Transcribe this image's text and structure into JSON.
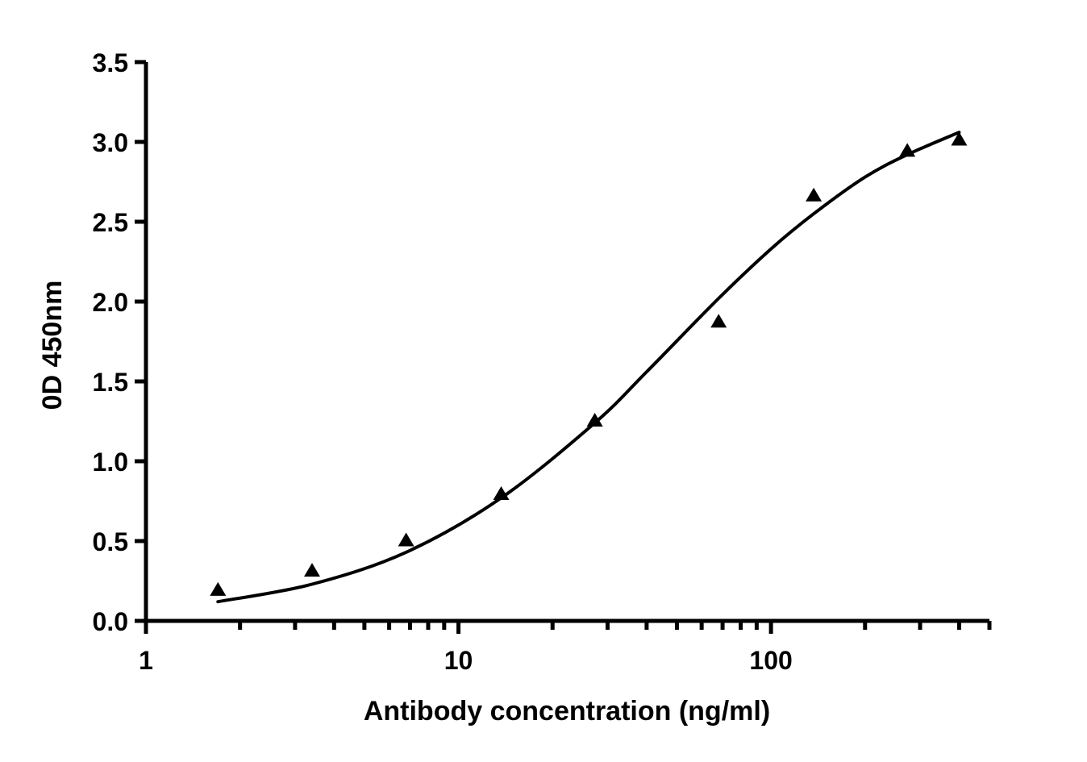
{
  "chart_data": {
    "type": "scatter",
    "title": "",
    "xlabel": "Antibody concentration (ng/ml)",
    "ylabel": "0D 450nm",
    "xscale": "log",
    "xlim": [
      1,
      500
    ],
    "ylim": [
      0,
      3.5
    ],
    "grid": false,
    "x_tick_labels": [
      "1",
      "10",
      "100"
    ],
    "y_tick_labels": [
      "0.0",
      "0.5",
      "1.0",
      "1.5",
      "2.0",
      "2.5",
      "3.0",
      "3.5"
    ],
    "series": [
      {
        "marker": "triangle",
        "points": [
          {
            "x": 1.7,
            "y": 0.19
          },
          {
            "x": 3.4,
            "y": 0.31
          },
          {
            "x": 6.8,
            "y": 0.5
          },
          {
            "x": 13.7,
            "y": 0.79
          },
          {
            "x": 27.3,
            "y": 1.25
          },
          {
            "x": 68,
            "y": 1.87
          },
          {
            "x": 137,
            "y": 2.66
          },
          {
            "x": 273,
            "y": 2.94
          },
          {
            "x": 400,
            "y": 3.01
          }
        ]
      }
    ],
    "fit_curve": {
      "type": "4PL",
      "x": [
        1.7,
        3.4,
        6.8,
        13.7,
        27.3,
        40,
        68,
        100,
        137,
        200,
        273,
        400
      ],
      "y": [
        0.12,
        0.23,
        0.43,
        0.77,
        1.24,
        1.56,
        2.02,
        2.33,
        2.55,
        2.78,
        2.92,
        3.06
      ]
    }
  }
}
